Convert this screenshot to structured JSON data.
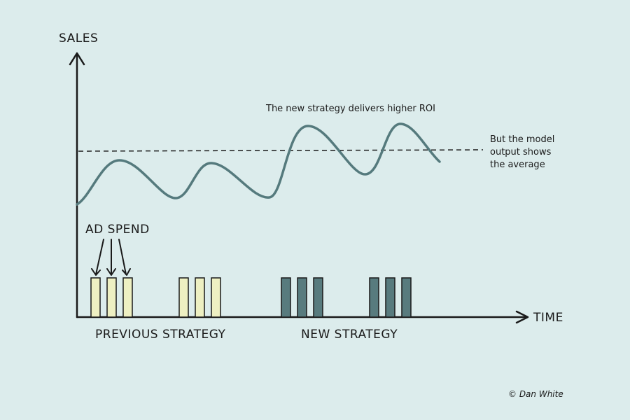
{
  "axes": {
    "y_label": "SALES",
    "x_label": "TIME"
  },
  "annotations": {
    "ad_spend": "AD SPEND",
    "roi": "The new strategy delivers higher ROI",
    "average": [
      "But the model",
      "output shows",
      "the average"
    ]
  },
  "groups": [
    {
      "label": "PREVIOUS STRATEGY"
    },
    {
      "label": "NEW STRATEGY"
    }
  ],
  "credit": "© Dan White"
}
